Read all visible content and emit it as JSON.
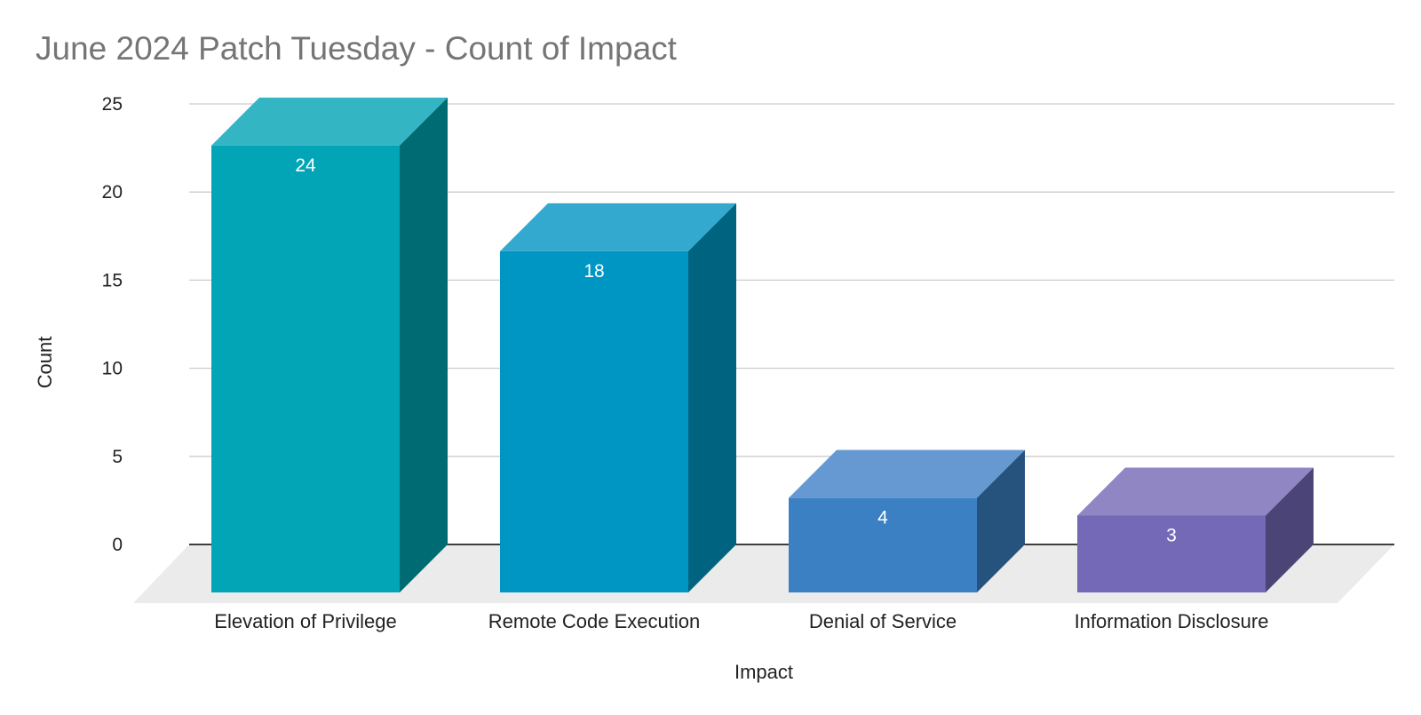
{
  "chart_data": {
    "type": "bar",
    "title": "June 2024 Patch Tuesday - Count of Impact",
    "xlabel": "Impact",
    "ylabel": "Count",
    "categories": [
      "Elevation of Privilege",
      "Remote Code Execution",
      "Denial of Service",
      "Information Disclosure"
    ],
    "values": [
      24,
      18,
      4,
      3
    ],
    "value_labels": [
      "24",
      "18",
      "4",
      "3"
    ],
    "ylim": [
      0,
      25
    ],
    "yticks": [
      "0",
      "5",
      "10",
      "15",
      "20",
      "25"
    ],
    "grid": true,
    "legend": "none",
    "style": "3d",
    "colors": {
      "front": [
        "#02A5B5",
        "#0096C4",
        "#3A80C3",
        "#7469B6"
      ],
      "top": [
        "#33B5C3",
        "#33A9CF",
        "#6699D1",
        "#8F86C3"
      ],
      "side": [
        "#006B73",
        "#00637F",
        "#26527E",
        "#4B4477"
      ],
      "floor": "#EBEBEB",
      "grid": "#CCCCCC",
      "baseline": "#000000",
      "title": "#757575"
    }
  }
}
